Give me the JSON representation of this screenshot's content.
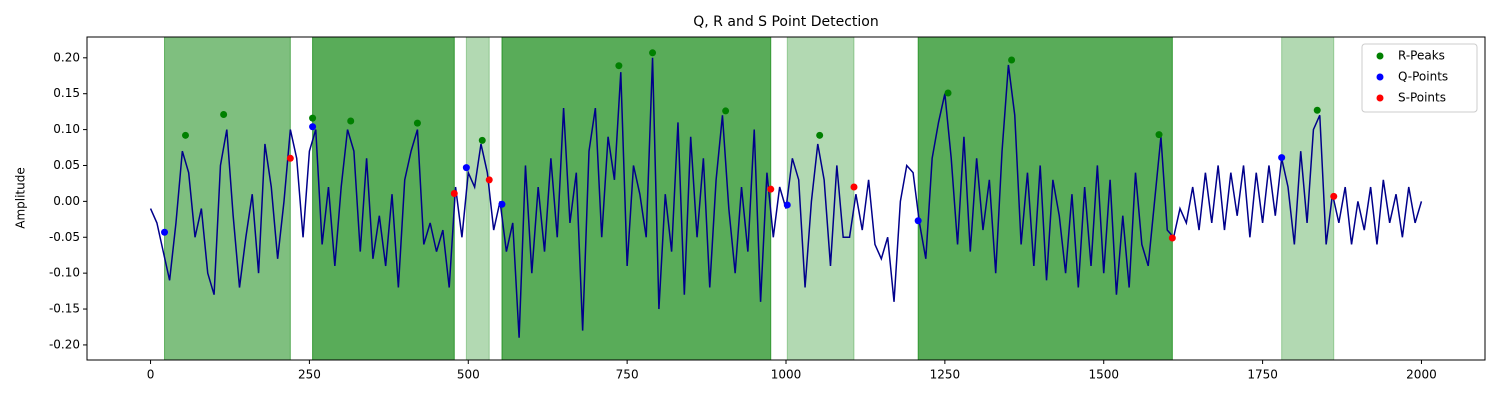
{
  "chart_data": {
    "type": "line",
    "title": "Q, R and S Point Detection",
    "ylabel": "Amplitude",
    "xlim": [
      -100,
      2100
    ],
    "ylim": [
      -0.221,
      0.229
    ],
    "xticks": [
      0,
      250,
      500,
      750,
      1000,
      1250,
      1500,
      1750,
      2000
    ],
    "yticks": [
      {
        "value": -0.2,
        "label": "-0.20"
      },
      -0.15,
      {
        "value": -0.1,
        "label": "-0.10"
      },
      -0.05,
      {
        "value": 0,
        "label": "0.00"
      },
      0.05,
      {
        "value": 0.1,
        "label": "0.10"
      },
      0.15,
      {
        "value": 0.2,
        "label": "0.20"
      }
    ],
    "color": "#00008b",
    "x": [
      0,
      10,
      20,
      30,
      40,
      50,
      60,
      70,
      80,
      90,
      100,
      110,
      120,
      130,
      140,
      150,
      160,
      170,
      180,
      190,
      200,
      210,
      220,
      230,
      240,
      250,
      260,
      270,
      280,
      290,
      300,
      310,
      320,
      330,
      340,
      350,
      360,
      370,
      380,
      390,
      400,
      410,
      420,
      430,
      440,
      450,
      460,
      470,
      480,
      490,
      500,
      510,
      520,
      530,
      540,
      550,
      560,
      570,
      580,
      590,
      600,
      610,
      620,
      630,
      640,
      650,
      660,
      670,
      680,
      690,
      700,
      710,
      720,
      730,
      740,
      750,
      760,
      770,
      780,
      790,
      800,
      810,
      820,
      830,
      840,
      850,
      860,
      870,
      880,
      890,
      900,
      910,
      920,
      930,
      940,
      950,
      960,
      970,
      980,
      990,
      1000,
      1010,
      1020,
      1030,
      1040,
      1050,
      1060,
      1070,
      1080,
      1090,
      1100,
      1110,
      1120,
      1130,
      1140,
      1150,
      1160,
      1170,
      1180,
      1190,
      1200,
      1210,
      1220,
      1230,
      1240,
      1250,
      1260,
      1270,
      1280,
      1290,
      1300,
      1310,
      1320,
      1330,
      1340,
      1350,
      1360,
      1370,
      1380,
      1390,
      1400,
      1410,
      1420,
      1430,
      1440,
      1450,
      1460,
      1470,
      1480,
      1490,
      1500,
      1510,
      1520,
      1530,
      1540,
      1550,
      1560,
      1570,
      1580,
      1590,
      1600,
      1610,
      1620,
      1630,
      1640,
      1650,
      1660,
      1670,
      1680,
      1690,
      1700,
      1710,
      1720,
      1730,
      1740,
      1750,
      1760,
      1770,
      1780,
      1790,
      1800,
      1810,
      1820,
      1830,
      1840,
      1850,
      1860,
      1870,
      1880,
      1890,
      1900,
      1910,
      1920,
      1930,
      1940,
      1950,
      1960,
      1970,
      1980,
      1990,
      2000
    ],
    "values": [
      -0.01,
      -0.03,
      -0.07,
      -0.11,
      -0.03,
      0.07,
      0.04,
      -0.05,
      -0.01,
      -0.1,
      -0.13,
      0.05,
      0.1,
      -0.02,
      -0.12,
      -0.05,
      0.01,
      -0.1,
      0.08,
      0.02,
      -0.08,
      0.0,
      0.1,
      0.06,
      -0.05,
      0.07,
      0.1,
      -0.06,
      0.02,
      -0.09,
      0.02,
      0.1,
      0.07,
      -0.07,
      0.06,
      -0.08,
      -0.02,
      -0.09,
      0.01,
      -0.12,
      0.03,
      0.07,
      0.1,
      -0.06,
      -0.03,
      -0.07,
      -0.04,
      -0.12,
      0.02,
      -0.05,
      0.04,
      0.02,
      0.08,
      0.04,
      -0.04,
      0.0,
      -0.07,
      -0.03,
      -0.19,
      0.05,
      -0.1,
      0.02,
      -0.07,
      0.06,
      -0.05,
      0.13,
      -0.03,
      0.04,
      -0.18,
      0.07,
      0.13,
      -0.05,
      0.09,
      0.03,
      0.18,
      -0.09,
      0.05,
      0.01,
      -0.05,
      0.2,
      -0.15,
      0.01,
      -0.07,
      0.11,
      -0.13,
      0.09,
      -0.05,
      0.06,
      -0.12,
      0.03,
      0.12,
      -0.01,
      -0.1,
      0.02,
      -0.07,
      0.1,
      -0.14,
      0.04,
      -0.05,
      0.02,
      -0.01,
      0.06,
      0.03,
      -0.12,
      0.0,
      0.08,
      0.03,
      -0.09,
      0.05,
      -0.05,
      -0.05,
      0.01,
      -0.04,
      0.03,
      -0.06,
      -0.08,
      -0.05,
      -0.14,
      0.0,
      0.05,
      0.04,
      -0.03,
      -0.08,
      0.06,
      0.11,
      0.15,
      0.06,
      -0.06,
      0.09,
      -0.07,
      0.06,
      -0.04,
      0.03,
      -0.1,
      0.07,
      0.19,
      0.12,
      -0.06,
      0.04,
      -0.09,
      0.05,
      -0.11,
      0.03,
      -0.02,
      -0.1,
      0.01,
      -0.12,
      0.02,
      -0.09,
      0.05,
      -0.1,
      0.03,
      -0.13,
      -0.02,
      -0.12,
      0.04,
      -0.06,
      -0.09,
      0.0,
      0.09,
      -0.04,
      -0.05,
      -0.01,
      -0.03,
      0.02,
      -0.04,
      0.04,
      -0.03,
      0.05,
      -0.04,
      0.04,
      -0.02,
      0.05,
      -0.05,
      0.04,
      -0.03,
      0.05,
      -0.02,
      0.06,
      0.02,
      -0.06,
      0.07,
      -0.03,
      0.1,
      0.12,
      -0.06,
      0.01,
      -0.03,
      0.02,
      -0.06,
      0.0,
      -0.04,
      0.02,
      -0.06,
      0.03,
      -0.03,
      0.01,
      -0.05,
      0.02,
      -0.03,
      0.0
    ],
    "span_color": "green",
    "spans": [
      {
        "start": 22,
        "end": 220,
        "opacity": 0.5
      },
      {
        "start": 255,
        "end": 478,
        "opacity": 0.65
      },
      {
        "start": 497,
        "end": 533,
        "opacity": 0.3
      },
      {
        "start": 553,
        "end": 976,
        "opacity": 0.65
      },
      {
        "start": 1002,
        "end": 1107,
        "opacity": 0.3
      },
      {
        "start": 1208,
        "end": 1608,
        "opacity": 0.65
      },
      {
        "start": 1780,
        "end": 1862,
        "opacity": 0.3
      }
    ],
    "legend": "upper right",
    "series": [
      {
        "name": "R-Peaks",
        "color": "green",
        "x": [
          55,
          115,
          255,
          315,
          420,
          522,
          737,
          790,
          905,
          1053,
          1255,
          1355,
          1587,
          1836
        ],
        "values": [
          0.092,
          0.121,
          0.116,
          0.112,
          0.109,
          0.085,
          0.189,
          0.207,
          0.126,
          0.092,
          0.151,
          0.197,
          0.093,
          0.127
        ]
      },
      {
        "name": "Q-Points",
        "color": "blue",
        "x": [
          22,
          255,
          497,
          553,
          1002,
          1208,
          1780
        ],
        "values": [
          -0.043,
          0.104,
          0.047,
          -0.004,
          -0.005,
          -0.027,
          0.061
        ]
      },
      {
        "name": "S-Points",
        "color": "red",
        "x": [
          220,
          478,
          533,
          976,
          1107,
          1608,
          1862
        ],
        "values": [
          0.06,
          0.011,
          0.03,
          0.017,
          0.02,
          -0.051,
          0.007
        ]
      }
    ]
  }
}
